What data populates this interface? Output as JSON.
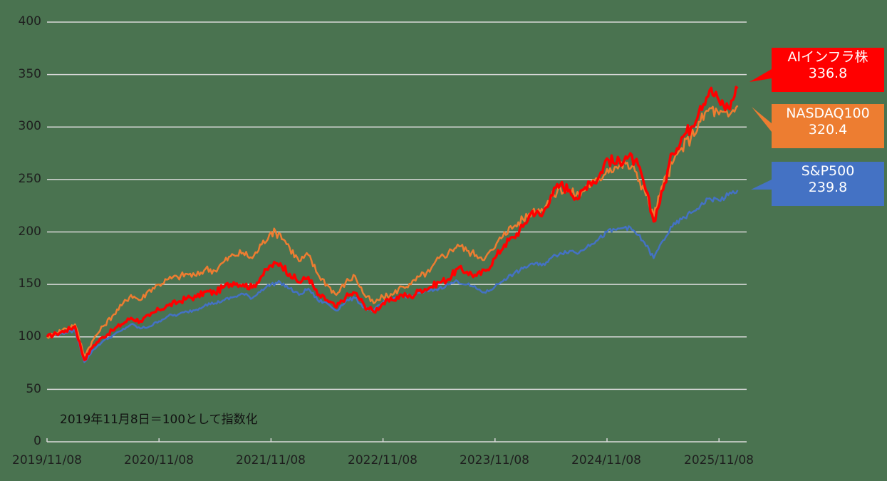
{
  "chart_data": {
    "type": "line",
    "title": "",
    "note": "2019年11月8日＝100として指数化",
    "xlabel": "",
    "ylabel": "",
    "ylim": [
      0,
      400
    ],
    "yticks": [
      0,
      50,
      100,
      150,
      200,
      250,
      300,
      350,
      400
    ],
    "grid": true,
    "xticks": [
      "2019/11/08",
      "2020/11/08",
      "2021/11/08",
      "2022/11/08",
      "2023/11/08",
      "2024/11/08",
      "2025/11/08"
    ],
    "legend_position": "right (callout boxes at series ends)",
    "x": [
      "2019-11",
      "2019-12",
      "2020-01",
      "2020-02",
      "2020-03",
      "2020-04",
      "2020-05",
      "2020-06",
      "2020-07",
      "2020-08",
      "2020-09",
      "2020-10",
      "2020-11",
      "2020-12",
      "2021-01",
      "2021-02",
      "2021-03",
      "2021-04",
      "2021-05",
      "2021-06",
      "2021-07",
      "2021-08",
      "2021-09",
      "2021-10",
      "2021-11",
      "2021-12",
      "2022-01",
      "2022-02",
      "2022-03",
      "2022-04",
      "2022-05",
      "2022-06",
      "2022-07",
      "2022-08",
      "2022-09",
      "2022-10",
      "2022-11",
      "2022-12",
      "2023-01",
      "2023-02",
      "2023-03",
      "2023-04",
      "2023-05",
      "2023-06",
      "2023-07",
      "2023-08",
      "2023-09",
      "2023-10",
      "2023-11",
      "2023-12",
      "2024-01",
      "2024-02",
      "2024-03",
      "2024-04",
      "2024-05",
      "2024-06",
      "2024-07",
      "2024-08",
      "2024-09",
      "2024-10",
      "2024-11",
      "2024-12",
      "2025-01",
      "2025-02",
      "2025-03",
      "2025-04",
      "2025-05",
      "2025-06",
      "2025-07",
      "2025-08",
      "2025-09",
      "2025-10",
      "2025-11",
      "2025-12",
      "2026-01"
    ],
    "series": [
      {
        "name": "AIインフラ株",
        "color": "#ff0000",
        "end_value": 336.8,
        "values": [
          100,
          103,
          106,
          110,
          78,
          92,
          100,
          106,
          112,
          118,
          115,
          120,
          126,
          130,
          133,
          137,
          138,
          143,
          142,
          148,
          152,
          150,
          147,
          158,
          168,
          170,
          160,
          152,
          157,
          140,
          135,
          128,
          138,
          142,
          130,
          124,
          132,
          135,
          140,
          138,
          145,
          147,
          152,
          155,
          165,
          162,
          158,
          163,
          175,
          188,
          195,
          205,
          220,
          215,
          235,
          245,
          240,
          232,
          248,
          250,
          270,
          265,
          272,
          268,
          245,
          210,
          240,
          275,
          290,
          300,
          320,
          335,
          325,
          318,
          336.8
        ]
      },
      {
        "name": "NASDAQ100",
        "color": "#ed7d31",
        "end_value": 320.4,
        "values": [
          100,
          104,
          108,
          112,
          82,
          98,
          110,
          120,
          130,
          140,
          135,
          145,
          150,
          155,
          157,
          160,
          158,
          165,
          163,
          172,
          178,
          180,
          175,
          188,
          200,
          198,
          185,
          172,
          178,
          160,
          150,
          140,
          152,
          158,
          140,
          132,
          138,
          140,
          148,
          150,
          158,
          162,
          175,
          180,
          188,
          182,
          178,
          176,
          185,
          200,
          205,
          212,
          220,
          222,
          232,
          242,
          238,
          235,
          245,
          248,
          260,
          262,
          265,
          258,
          240,
          215,
          245,
          265,
          280,
          290,
          305,
          318,
          312,
          310,
          320.4
        ]
      },
      {
        "name": "S&P500",
        "color": "#4472c4",
        "end_value": 239.8,
        "values": [
          100,
          102,
          104,
          106,
          76,
          88,
          96,
          101,
          106,
          112,
          108,
          110,
          115,
          120,
          121,
          124,
          126,
          131,
          132,
          135,
          138,
          141,
          137,
          145,
          150,
          152,
          146,
          140,
          146,
          135,
          132,
          125,
          134,
          137,
          128,
          125,
          133,
          136,
          140,
          138,
          142,
          144,
          146,
          150,
          153,
          150,
          146,
          142,
          148,
          155,
          160,
          165,
          170,
          168,
          175,
          180,
          182,
          180,
          188,
          192,
          200,
          202,
          205,
          200,
          190,
          175,
          192,
          205,
          212,
          218,
          225,
          232,
          230,
          235,
          239.8
        ]
      }
    ]
  },
  "y_axis_labels": [
    "400",
    "350",
    "300",
    "250",
    "200",
    "150",
    "100",
    "50",
    "0"
  ],
  "x_axis_labels": [
    "2019/11/08",
    "2020/11/08",
    "2021/11/08",
    "2022/11/08",
    "2023/11/08",
    "2024/11/08",
    "2025/11/08"
  ],
  "note_text": "2019年11月8日＝100として指数化",
  "callouts": [
    {
      "name": "AIインフラ株",
      "value": "336.8",
      "color": "#ff0000"
    },
    {
      "name": "NASDAQ100",
      "value": "320.4",
      "color": "#ed7d31"
    },
    {
      "name": "S&P500",
      "value": "239.8",
      "color": "#4472c4"
    }
  ]
}
